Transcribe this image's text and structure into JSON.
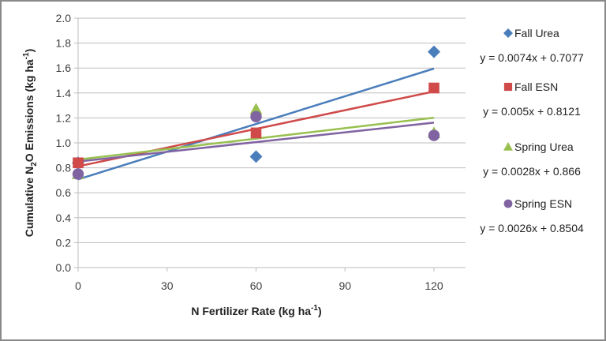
{
  "chart_data": {
    "type": "scatter",
    "xlabel": "N Fertilizer Rate (kg ha",
    "xlabel_sup": "-1",
    "xlabel_end": ")",
    "ylabel": "Cumulative N",
    "ylabel_sub": "2",
    "ylabel_mid": "O Emissions (kg ha",
    "ylabel_sup": "-1",
    "ylabel_end": ")",
    "xlim": [
      0,
      130
    ],
    "ylim": [
      0,
      2.0
    ],
    "xticks": [
      0,
      30,
      60,
      90,
      120
    ],
    "yticks": [
      "0.0",
      "0.2",
      "0.4",
      "0.6",
      "0.8",
      "1.0",
      "1.2",
      "1.4",
      "1.6",
      "1.8",
      "2.0"
    ],
    "grid": "horizontal",
    "legend_placement": "right",
    "series": [
      {
        "name": "Fall Urea",
        "marker": "diamond",
        "color": "#4a7ebb",
        "x": [
          0,
          60,
          120
        ],
        "y": [
          0.84,
          0.89,
          1.73
        ],
        "trendline": {
          "slope": 0.0074,
          "intercept": 0.7077,
          "equation": "y = 0.0074x + 0.7077"
        }
      },
      {
        "name": "Fall ESN",
        "marker": "square",
        "color": "#d04a4a",
        "x": [
          0,
          60,
          120
        ],
        "y": [
          0.84,
          1.08,
          1.44
        ],
        "trendline": {
          "slope": 0.005,
          "intercept": 0.8121,
          "equation": "y = 0.005x + 0.8121"
        }
      },
      {
        "name": "Spring Urea",
        "marker": "triangle",
        "color": "#98c050",
        "x": [
          0,
          60,
          120
        ],
        "y": [
          0.75,
          1.27,
          1.08
        ],
        "trendline": {
          "slope": 0.0028,
          "intercept": 0.866,
          "equation": "y = 0.0028x + 0.866"
        }
      },
      {
        "name": "Spring ESN",
        "marker": "circle",
        "color": "#8064a2",
        "x": [
          0,
          60,
          120
        ],
        "y": [
          0.75,
          1.21,
          1.06
        ],
        "trendline": {
          "slope": 0.0026,
          "intercept": 0.8504,
          "equation": "y = 0.0026x + 0.8504"
        }
      }
    ]
  }
}
